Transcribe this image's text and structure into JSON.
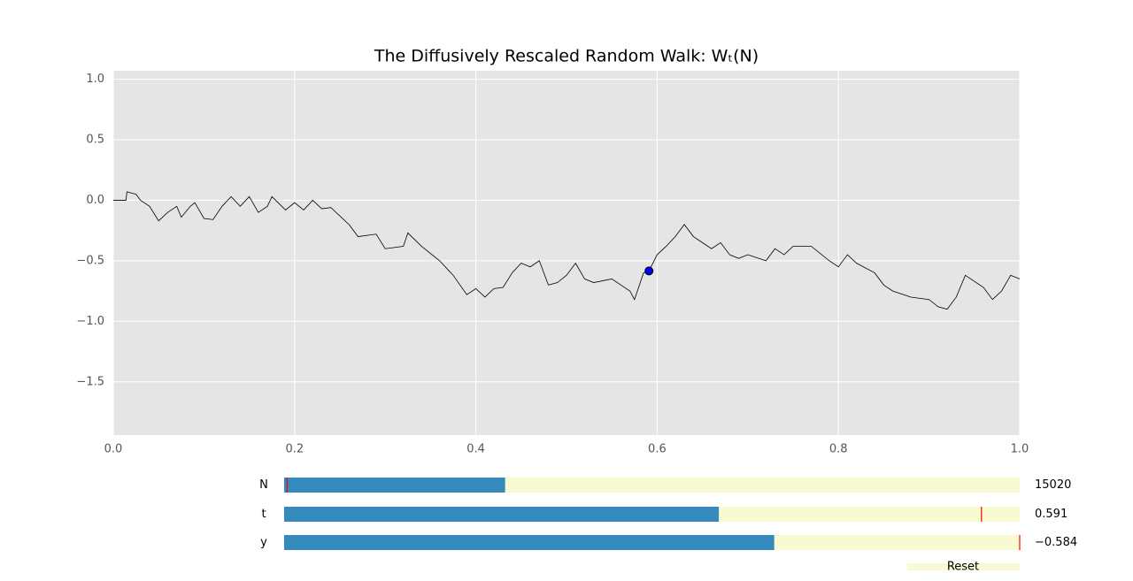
{
  "chart_data": {
    "type": "line",
    "title": "The Diffusively Rescaled Random Walk: Wₜ(N)",
    "xlim": [
      0,
      1
    ],
    "ylim": [
      -1.94,
      1.07
    ],
    "xticks": [
      {
        "value": 0,
        "label": "0.0"
      },
      0.2,
      0.4,
      0.6,
      0.8,
      {
        "value": 1,
        "label": "1.0"
      }
    ],
    "yticks": [
      {
        "value": -1.5,
        "label": "−1.5"
      },
      {
        "value": -1,
        "label": "−1.0"
      },
      {
        "value": -0.5,
        "label": "−0.5"
      },
      {
        "value": 0,
        "label": "0.0"
      },
      0.5,
      {
        "value": 1,
        "label": "1.0"
      }
    ],
    "grid": true,
    "background": "#e5e5e5",
    "point_color": "#0000ff",
    "series": [
      {
        "color": "#000000",
        "x": [
          0,
          0.014,
          0.015,
          0.025,
          0.03,
          0.04,
          0.05,
          0.06,
          0.07,
          0.075,
          0.085,
          0.09,
          0.1,
          0.11,
          0.12,
          0.13,
          0.14,
          0.15,
          0.16,
          0.17,
          0.175,
          0.19,
          0.2,
          0.21,
          0.22,
          0.23,
          0.24,
          0.26,
          0.27,
          0.29,
          0.3,
          0.32,
          0.325,
          0.34,
          0.36,
          0.375,
          0.39,
          0.4,
          0.41,
          0.42,
          0.43,
          0.44,
          0.45,
          0.46,
          0.47,
          0.48,
          0.49,
          0.5,
          0.51,
          0.52,
          0.53,
          0.55,
          0.57,
          0.575,
          0.585,
          0.591,
          0.6,
          0.61,
          0.62,
          0.63,
          0.64,
          0.65,
          0.66,
          0.67,
          0.68,
          0.69,
          0.7,
          0.72,
          0.73,
          0.74,
          0.75,
          0.77,
          0.79,
          0.8,
          0.81,
          0.82,
          0.84,
          0.85,
          0.86,
          0.88,
          0.9,
          0.91,
          0.92,
          0.93,
          0.94,
          0.96,
          0.97,
          0.98,
          0.99,
          1.0
        ],
        "values": [
          0,
          0,
          0.07,
          0.05,
          0,
          -0.05,
          -0.17,
          -0.1,
          -0.05,
          -0.14,
          -0.05,
          -0.02,
          -0.15,
          -0.16,
          -0.05,
          0.03,
          -0.05,
          0.03,
          -0.1,
          -0.05,
          0.03,
          -0.08,
          -0.02,
          -0.08,
          0,
          -0.07,
          -0.06,
          -0.2,
          -0.3,
          -0.28,
          -0.4,
          -0.38,
          -0.27,
          -0.38,
          -0.5,
          -0.62,
          -0.78,
          -0.73,
          -0.8,
          -0.73,
          -0.72,
          -0.6,
          -0.52,
          -0.55,
          -0.5,
          -0.7,
          -0.68,
          -0.62,
          -0.52,
          -0.65,
          -0.68,
          -0.65,
          -0.75,
          -0.82,
          -0.6,
          -0.584,
          -0.45,
          -0.38,
          -0.3,
          -0.2,
          -0.3,
          -0.35,
          -0.4,
          -0.35,
          -0.45,
          -0.48,
          -0.45,
          -0.5,
          -0.4,
          -0.45,
          -0.38,
          -0.38,
          -0.5,
          -0.55,
          -0.45,
          -0.52,
          -0.6,
          -0.7,
          -0.75,
          -0.8,
          -0.82,
          -0.88,
          -0.9,
          -0.8,
          -0.62,
          -0.72,
          -0.82,
          -0.75,
          -0.62,
          -0.65
        ]
      }
    ]
  },
  "sliders": [
    {
      "label": "N",
      "value": 15020,
      "min": 0,
      "max": 50000,
      "init": 200
    },
    {
      "label": "t",
      "value": 0.591,
      "min": 0,
      "max": 1,
      "init": 0.948
    },
    {
      "label": "y",
      "value": -0.584,
      "value_label": "−0.584",
      "min": -1.75,
      "max": 0,
      "init": 0
    }
  ],
  "reset_button": "Reset"
}
